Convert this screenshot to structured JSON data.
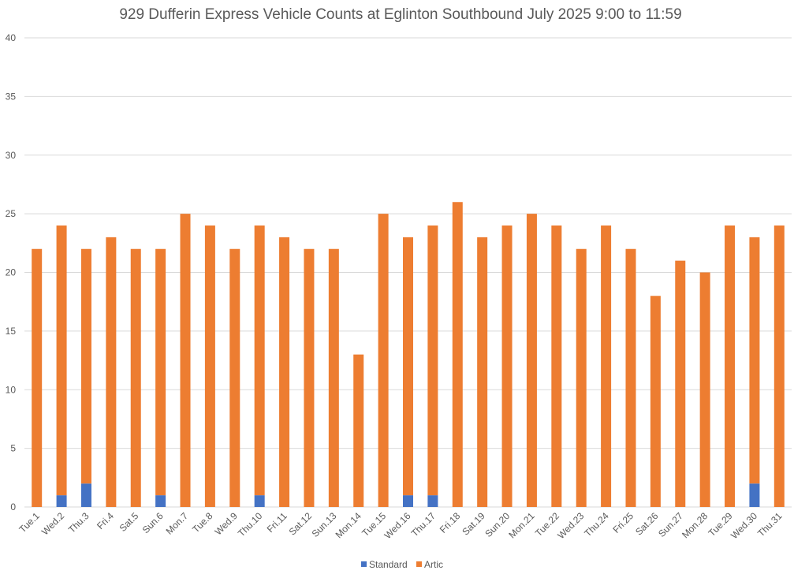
{
  "chart_data": {
    "type": "bar",
    "stacked": true,
    "title": "929 Dufferin Express Vehicle Counts at Eglinton Southbound July 2025  9:00 to 11:59",
    "xlabel": "",
    "ylabel": "",
    "ylim": [
      0,
      40
    ],
    "yticks": [
      0,
      5,
      10,
      15,
      20,
      25,
      30,
      35,
      40
    ],
    "grid": true,
    "legend_position": "bottom",
    "categories": [
      "Tue.1",
      "Wed.2",
      "Thu.3",
      "Fri.4",
      "Sat.5",
      "Sun.6",
      "Mon.7",
      "Tue.8",
      "Wed.9",
      "Thu.10",
      "Fri.11",
      "Sat.12",
      "Sun.13",
      "Mon.14",
      "Tue.15",
      "Wed.16",
      "Thu.17",
      "Fri.18",
      "Sat.19",
      "Sun.20",
      "Mon.21",
      "Tue.22",
      "Wed.23",
      "Thu.24",
      "Fri.25",
      "Sat.26",
      "Sun.27",
      "Mon.28",
      "Tue.29",
      "Wed.30",
      "Thu.31"
    ],
    "series": [
      {
        "name": "Standard",
        "color": "#4472c4",
        "values": [
          0,
          1,
          2,
          0,
          0,
          1,
          0,
          0,
          0,
          1,
          0,
          0,
          0,
          0,
          0,
          1,
          1,
          0,
          0,
          0,
          0,
          0,
          0,
          0,
          0,
          0,
          0,
          0,
          0,
          2,
          0
        ]
      },
      {
        "name": "Artic",
        "color": "#ed7d31",
        "values": [
          22,
          23,
          20,
          23,
          22,
          21,
          25,
          24,
          22,
          23,
          23,
          22,
          22,
          13,
          25,
          22,
          23,
          26,
          23,
          24,
          25,
          24,
          22,
          24,
          22,
          18,
          21,
          20,
          24,
          21,
          24
        ]
      }
    ]
  }
}
